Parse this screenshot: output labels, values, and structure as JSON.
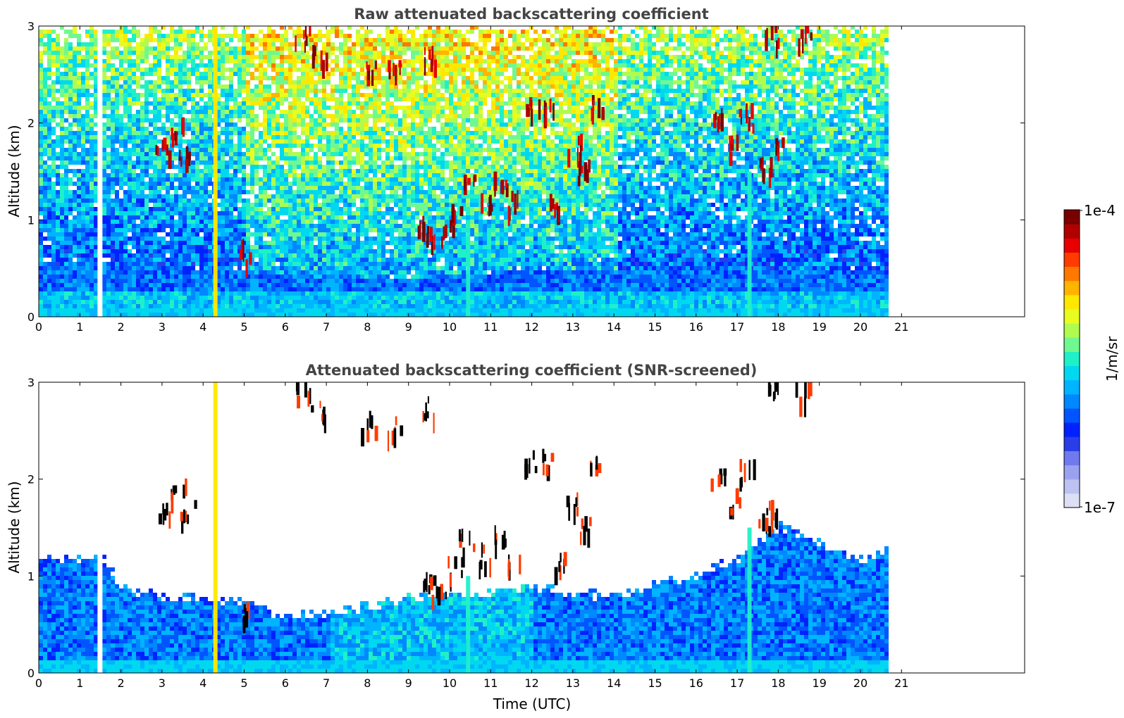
{
  "chart_data": [
    {
      "type": "heatmap",
      "title": "Raw attenuated backscattering coefficient",
      "xlabel": "",
      "ylabel": "Altitude (km)",
      "xlim": [
        0,
        24
      ],
      "ylim": [
        0,
        3
      ],
      "xticks": [
        0,
        1,
        2,
        3,
        4,
        5,
        6,
        7,
        8,
        9,
        10,
        11,
        12,
        13,
        14,
        15,
        16,
        17,
        18,
        19,
        20,
        21
      ],
      "yticks": [
        0,
        1,
        2,
        3
      ],
      "data_end_time": 20.6,
      "gaps": [
        {
          "start": 1.43,
          "end": 1.55
        }
      ],
      "boundary_layer_top": [
        {
          "t": 0,
          "h": 0.55
        },
        {
          "t": 2,
          "h": 0.6
        },
        {
          "t": 4,
          "h": 0.5
        },
        {
          "t": 6,
          "h": 0.45
        },
        {
          "t": 8,
          "h": 0.4
        },
        {
          "t": 10,
          "h": 0.45
        },
        {
          "t": 12,
          "h": 0.5
        },
        {
          "t": 14,
          "h": 0.5
        },
        {
          "t": 16,
          "h": 0.55
        },
        {
          "t": 18,
          "h": 0.5
        },
        {
          "t": 20.6,
          "h": 0.5
        }
      ],
      "vertical_streaks": [
        {
          "t": 4.3,
          "h_top": 3.0,
          "level": "yellow"
        },
        {
          "t": 10.45,
          "h_top": 1.0,
          "level": "cyan"
        },
        {
          "t": 17.3,
          "h_top": 1.5,
          "level": "cyan"
        }
      ],
      "cloud_features": [
        {
          "t": 3.0,
          "h": 1.75,
          "level": "high"
        },
        {
          "t": 3.4,
          "h": 1.95,
          "level": "high"
        },
        {
          "t": 3.6,
          "h": 1.7,
          "level": "high"
        },
        {
          "t": 5.0,
          "h": 0.7,
          "level": "high"
        },
        {
          "t": 6.4,
          "h": 2.95,
          "level": "high"
        },
        {
          "t": 6.8,
          "h": 2.75,
          "level": "high"
        },
        {
          "t": 8.0,
          "h": 2.6,
          "level": "high"
        },
        {
          "t": 8.6,
          "h": 2.55,
          "level": "high"
        },
        {
          "t": 9.5,
          "h": 2.75,
          "level": "high"
        },
        {
          "t": 9.4,
          "h": 0.95,
          "level": "high"
        },
        {
          "t": 9.7,
          "h": 0.9,
          "level": "high"
        },
        {
          "t": 10.1,
          "h": 1.1,
          "level": "high"
        },
        {
          "t": 10.4,
          "h": 1.4,
          "level": "high"
        },
        {
          "t": 10.9,
          "h": 1.25,
          "level": "high"
        },
        {
          "t": 11.2,
          "h": 1.45,
          "level": "high"
        },
        {
          "t": 11.6,
          "h": 1.2,
          "level": "high"
        },
        {
          "t": 12.0,
          "h": 2.2,
          "level": "high"
        },
        {
          "t": 12.4,
          "h": 2.25,
          "level": "high"
        },
        {
          "t": 12.6,
          "h": 1.2,
          "level": "high"
        },
        {
          "t": 13.0,
          "h": 1.8,
          "level": "high"
        },
        {
          "t": 13.3,
          "h": 1.55,
          "level": "high"
        },
        {
          "t": 13.6,
          "h": 2.2,
          "level": "high"
        },
        {
          "t": 16.5,
          "h": 2.05,
          "level": "high"
        },
        {
          "t": 16.9,
          "h": 1.8,
          "level": "high"
        },
        {
          "t": 17.2,
          "h": 2.1,
          "level": "high"
        },
        {
          "t": 17.6,
          "h": 1.6,
          "level": "high"
        },
        {
          "t": 17.9,
          "h": 1.75,
          "level": "high"
        },
        {
          "t": 17.8,
          "h": 2.95,
          "level": "high"
        },
        {
          "t": 18.6,
          "h": 2.95,
          "level": "high"
        }
      ]
    },
    {
      "type": "heatmap",
      "title": "Attenuated backscattering coefficient (SNR-screened)",
      "xlabel": "Time (UTC)",
      "ylabel": "Altitude (km)",
      "xlim": [
        0,
        24
      ],
      "ylim": [
        0,
        3
      ],
      "xticks": [
        0,
        1,
        2,
        3,
        4,
        5,
        6,
        7,
        8,
        9,
        10,
        11,
        12,
        13,
        14,
        15,
        16,
        17,
        18,
        19,
        20,
        21
      ],
      "yticks": [
        0,
        1,
        2,
        3
      ],
      "data_end_time": 20.6,
      "gaps": [
        {
          "start": 1.43,
          "end": 1.55
        }
      ],
      "screened_region_top": [
        {
          "t": 0,
          "h": 1.2
        },
        {
          "t": 1.5,
          "h": 1.2
        },
        {
          "t": 2.0,
          "h": 0.9
        },
        {
          "t": 3.0,
          "h": 0.8
        },
        {
          "t": 4.0,
          "h": 0.8
        },
        {
          "t": 5.0,
          "h": 0.75
        },
        {
          "t": 6.0,
          "h": 0.6
        },
        {
          "t": 7.0,
          "h": 0.65
        },
        {
          "t": 8.0,
          "h": 0.7
        },
        {
          "t": 9.0,
          "h": 0.8
        },
        {
          "t": 10.0,
          "h": 0.85
        },
        {
          "t": 11.0,
          "h": 0.85
        },
        {
          "t": 12.0,
          "h": 0.9
        },
        {
          "t": 13.0,
          "h": 0.85
        },
        {
          "t": 14.0,
          "h": 0.8
        },
        {
          "t": 15.0,
          "h": 0.95
        },
        {
          "t": 16.0,
          "h": 1.05
        },
        {
          "t": 17.0,
          "h": 1.2
        },
        {
          "t": 18.0,
          "h": 1.55
        },
        {
          "t": 19.0,
          "h": 1.35
        },
        {
          "t": 20.0,
          "h": 1.2
        },
        {
          "t": 20.6,
          "h": 1.3
        }
      ]
    }
  ],
  "colorbar": {
    "min_label": "1e-7",
    "max_label": "1e-4",
    "unit_label": "1/m/sr",
    "colors": [
      "#dde0f5",
      "#bcc2f2",
      "#9aa2f0",
      "#6f7aee",
      "#2a3ee8",
      "#0022ff",
      "#0055ff",
      "#0088ff",
      "#00b4ff",
      "#00d8f0",
      "#20f0c8",
      "#70f890",
      "#b0fb50",
      "#e8fc20",
      "#ffe800",
      "#ffb400",
      "#ff7800",
      "#ff3c00",
      "#e80000",
      "#b00000",
      "#7a0000"
    ]
  }
}
